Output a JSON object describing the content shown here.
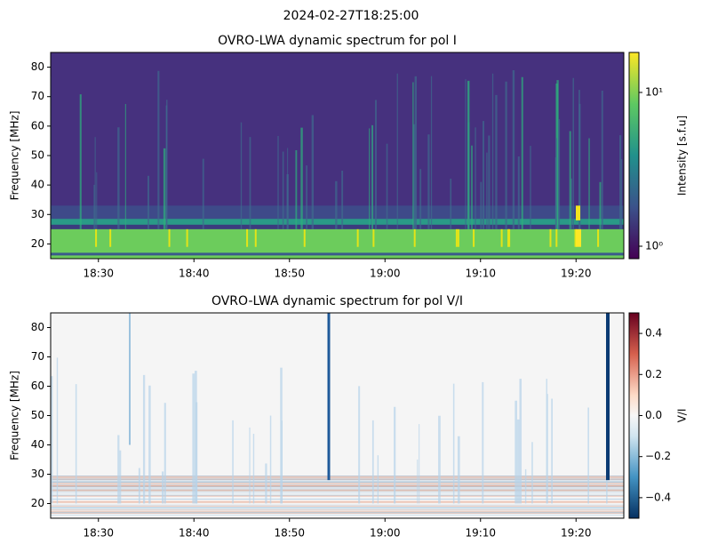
{
  "title": "2024-02-27T18:25:00",
  "chart_data": [
    {
      "type": "heatmap",
      "title": "OVRO-LWA dynamic spectrum for pol I",
      "ylabel": "Frequency [MHz]",
      "xlim": [
        "18:25",
        "19:25"
      ],
      "xticks": [
        "18:30",
        "18:40",
        "18:50",
        "19:00",
        "19:10",
        "19:20"
      ],
      "ylim": [
        15,
        85
      ],
      "yticks": [
        20,
        30,
        40,
        50,
        60,
        70,
        80
      ],
      "colorbar": {
        "label": "Intensity [s.f.u]",
        "scale": "log",
        "colormap": "viridis",
        "clim": [
          0.83,
          18.2
        ],
        "ticks": [
          {
            "value": 1,
            "label": "10⁰"
          },
          {
            "value": 10,
            "label": "10¹"
          }
        ]
      }
    },
    {
      "type": "heatmap",
      "title": "OVRO-LWA dynamic spectrum for pol V/I",
      "ylabel": "Frequency [MHz]",
      "xlim": [
        "18:25",
        "19:25"
      ],
      "xticks": [
        "18:30",
        "18:40",
        "18:50",
        "19:00",
        "19:10",
        "19:20"
      ],
      "ylim": [
        15,
        85
      ],
      "yticks": [
        20,
        30,
        40,
        50,
        60,
        70,
        80
      ],
      "colorbar": {
        "label": "V/I",
        "scale": "linear",
        "colormap": "RdBu_r",
        "clim": [
          -0.5,
          0.5
        ],
        "ticks": [
          {
            "value": -0.4,
            "label": "−0.4"
          },
          {
            "value": -0.2,
            "label": "−0.2"
          },
          {
            "value": 0,
            "label": "0.0"
          },
          0.2,
          0.4
        ]
      }
    }
  ]
}
